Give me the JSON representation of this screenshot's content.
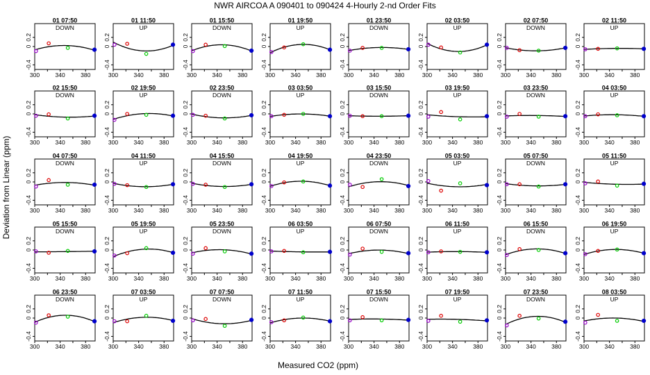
{
  "chart_data": {
    "type": "scatter",
    "title": "NWR   AIRCOA A   090401 to 090424   4-Hourly 2-nd Order Fits",
    "xlabel": "Measured CO2 (ppm)",
    "ylabel": "Deviation from Linear (ppm)",
    "xlim": [
      300,
      395
    ],
    "ylim": [
      -0.5,
      0.5
    ],
    "xticks": [
      300,
      340,
      380
    ],
    "xticks_minor": [
      320,
      360
    ],
    "yticks": [
      -0.4,
      0.0,
      0.2
    ],
    "ytick_labels": [
      "-0.4",
      "0",
      "0.2"
    ],
    "x_tick_labels_on_row": "bottom-row panels and row 1 (02 15:50 ... 02 23:50 panels of row 2 show 300/340/380 on first column only)",
    "standards_x": [
      302,
      322,
      352,
      394
    ],
    "standard_colors": [
      "#9900cc",
      "#dd0000",
      "#00cc00",
      "#0000cc"
    ],
    "fit_color": "#000000",
    "panels": [
      {
        "title": "01 07:50",
        "dir": "DOWN",
        "y": [
          -0.1,
          0.07,
          -0.03,
          -0.07
        ]
      },
      {
        "title": "01 11:50",
        "dir": "UP",
        "y": [
          0.04,
          0.06,
          -0.16,
          0.04
        ]
      },
      {
        "title": "01 15:50",
        "dir": "DOWN",
        "y": [
          -0.1,
          0.04,
          0.01,
          -0.09
        ]
      },
      {
        "title": "01 19:50",
        "dir": "UP",
        "y": [
          -0.12,
          -0.02,
          0.05,
          -0.07
        ]
      },
      {
        "title": "01 23:50",
        "dir": "DOWN",
        "y": [
          -0.09,
          -0.03,
          -0.03,
          -0.06
        ]
      },
      {
        "title": "02 03:50",
        "dir": "UP",
        "y": [
          0.04,
          -0.02,
          -0.13,
          0.04
        ]
      },
      {
        "title": "02 07:50",
        "dir": "DOWN",
        "y": [
          -0.03,
          -0.08,
          -0.09,
          -0.03
        ]
      },
      {
        "title": "02 11:50",
        "dir": "UP",
        "y": [
          -0.06,
          -0.05,
          -0.04,
          -0.05
        ]
      },
      {
        "title": "02 15:50",
        "dir": "DOWN",
        "y": [
          -0.04,
          -0.01,
          -0.1,
          -0.04
        ]
      },
      {
        "title": "02 19:50",
        "dir": "UP",
        "y": [
          -0.13,
          0.0,
          -0.02,
          -0.04
        ]
      },
      {
        "title": "02 23:50",
        "dir": "DOWN",
        "y": [
          -0.02,
          -0.04,
          -0.1,
          -0.03
        ]
      },
      {
        "title": "03 03:50",
        "dir": "UP",
        "y": [
          -0.05,
          -0.02,
          0.0,
          -0.05
        ]
      },
      {
        "title": "03 15:50",
        "dir": "DOWN",
        "y": [
          -0.04,
          -0.05,
          -0.05,
          -0.04
        ]
      },
      {
        "title": "03 19:50",
        "dir": "UP",
        "y": [
          -0.06,
          0.04,
          -0.12,
          -0.05
        ]
      },
      {
        "title": "03 23:50",
        "dir": "DOWN",
        "y": [
          -0.06,
          0.0,
          -0.06,
          -0.05
        ]
      },
      {
        "title": "04 03:50",
        "dir": "UP",
        "y": [
          -0.05,
          -0.01,
          -0.03,
          -0.05
        ]
      },
      {
        "title": "04 07:50",
        "dir": "DOWN",
        "y": [
          -0.1,
          0.04,
          -0.06,
          -0.06
        ]
      },
      {
        "title": "04 11:50",
        "dir": "UP",
        "y": [
          -0.04,
          -0.07,
          -0.11,
          -0.05
        ]
      },
      {
        "title": "04 15:50",
        "dir": "DOWN",
        "y": [
          -0.04,
          -0.06,
          -0.11,
          -0.05
        ]
      },
      {
        "title": "04 19:50",
        "dir": "UP",
        "y": [
          -0.09,
          -0.01,
          0.01,
          -0.08
        ]
      },
      {
        "title": "04 23:50",
        "dir": "DOWN",
        "y": [
          -0.06,
          -0.11,
          0.06,
          -0.09
        ]
      },
      {
        "title": "05 03:50",
        "dir": "UP",
        "y": [
          0.02,
          -0.19,
          -0.03,
          -0.07
        ]
      },
      {
        "title": "05 07:50",
        "dir": "DOWN",
        "y": [
          -0.05,
          -0.05,
          -0.1,
          -0.05
        ]
      },
      {
        "title": "05 11:50",
        "dir": "UP",
        "y": [
          -0.03,
          0.01,
          -0.08,
          -0.04
        ]
      },
      {
        "title": "05 15:50",
        "dir": "DOWN",
        "y": [
          -0.03,
          -0.06,
          -0.02,
          -0.03
        ]
      },
      {
        "title": "05 19:50",
        "dir": "UP",
        "y": [
          -0.12,
          -0.07,
          0.04,
          -0.06
        ]
      },
      {
        "title": "05 23:50",
        "dir": "DOWN",
        "y": [
          -0.08,
          0.04,
          -0.03,
          -0.08
        ]
      },
      {
        "title": "06 03:50",
        "dir": "UP",
        "y": [
          -0.03,
          -0.02,
          -0.05,
          -0.04
        ]
      },
      {
        "title": "06 07:50",
        "dir": "DOWN",
        "y": [
          -0.1,
          0.03,
          -0.04,
          -0.07
        ]
      },
      {
        "title": "06 11:50",
        "dir": "UP",
        "y": [
          -0.05,
          -0.03,
          -0.04,
          -0.05
        ]
      },
      {
        "title": "06 15:50",
        "dir": "DOWN",
        "y": [
          -0.11,
          0.02,
          0.0,
          -0.07
        ]
      },
      {
        "title": "06 19:50",
        "dir": "UP",
        "y": [
          -0.09,
          -0.02,
          0.01,
          -0.07
        ]
      },
      {
        "title": "06 23:50",
        "dir": "DOWN",
        "y": [
          -0.1,
          0.06,
          0.03,
          -0.07
        ]
      },
      {
        "title": "07 03:50",
        "dir": "UP",
        "y": [
          -0.07,
          -0.07,
          0.05,
          -0.06
        ]
      },
      {
        "title": "07 07:50",
        "dir": "DOWN",
        "y": [
          -0.05,
          -0.02,
          -0.17,
          -0.04
        ]
      },
      {
        "title": "07 11:50",
        "dir": "UP",
        "y": [
          -0.09,
          -0.05,
          0.01,
          -0.07
        ]
      },
      {
        "title": "07 15:50",
        "dir": "DOWN",
        "y": [
          -0.05,
          0.02,
          -0.05,
          -0.04
        ]
      },
      {
        "title": "07 19:50",
        "dir": "UP",
        "y": [
          -0.06,
          0.05,
          -0.08,
          -0.05
        ]
      },
      {
        "title": "07 23:50",
        "dir": "DOWN",
        "y": [
          -0.16,
          0.05,
          -0.01,
          -0.08
        ]
      },
      {
        "title": "08 03:50",
        "dir": "UP",
        "y": [
          -0.1,
          0.07,
          -0.06,
          -0.06
        ]
      }
    ]
  }
}
